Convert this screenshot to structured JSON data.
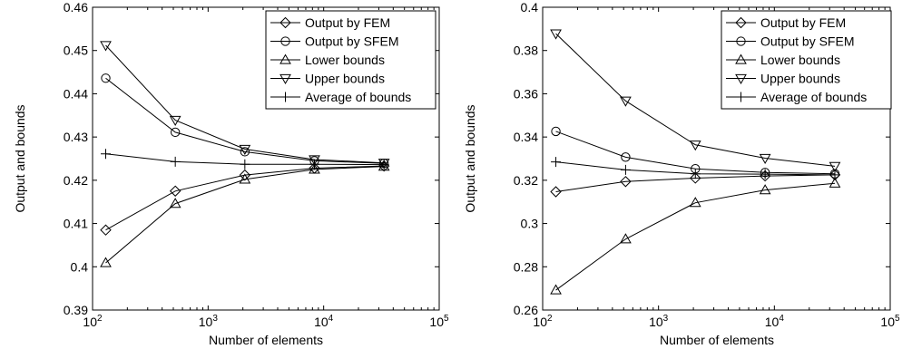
{
  "chart_data": [
    {
      "type": "line",
      "xscale": "log",
      "xlim": [
        100,
        100000
      ],
      "ylim": [
        0.39,
        0.46
      ],
      "x_ticks": [
        100,
        1000,
        10000,
        100000
      ],
      "x_tick_labels": [
        {
          "base": "10",
          "exp": "2"
        },
        {
          "base": "10",
          "exp": "3"
        },
        {
          "base": "10",
          "exp": "4"
        },
        {
          "base": "10",
          "exp": "5"
        }
      ],
      "y_ticks": [
        0.39,
        0.4,
        0.41,
        0.42,
        0.43,
        0.44,
        0.45,
        0.46
      ],
      "y_tick_labels": [
        "0.39",
        "0.4",
        "0.41",
        "0.42",
        "0.43",
        "0.44",
        "0.45",
        "0.46"
      ],
      "xlabel": "Number of elements",
      "ylabel": "Output and bounds",
      "grid": false,
      "legend_position": "top-right",
      "x": [
        130,
        520,
        2080,
        8320,
        33280
      ],
      "series": [
        {
          "name": "Output by FEM",
          "marker": "diamond",
          "values": [
            0.4085,
            0.4175,
            0.4212,
            0.4228,
            0.4233
          ]
        },
        {
          "name": "Output by SFEM",
          "marker": "circle",
          "values": [
            0.4436,
            0.4311,
            0.4266,
            0.4245,
            0.4239
          ]
        },
        {
          "name": "Lower bounds",
          "marker": "triangle-up",
          "values": [
            0.4009,
            0.4146,
            0.4202,
            0.4225,
            0.4232
          ]
        },
        {
          "name": "Upper bounds",
          "marker": "triangle-down",
          "values": [
            0.4512,
            0.4339,
            0.4272,
            0.4248,
            0.424
          ]
        },
        {
          "name": "Average of bounds",
          "marker": "plus",
          "values": [
            0.4261,
            0.4243,
            0.4237,
            0.4237,
            0.4236
          ]
        }
      ]
    },
    {
      "type": "line",
      "xscale": "log",
      "xlim": [
        100,
        100000
      ],
      "ylim": [
        0.26,
        0.4
      ],
      "x_ticks": [
        100,
        1000,
        10000,
        100000
      ],
      "x_tick_labels": [
        {
          "base": "10",
          "exp": "2"
        },
        {
          "base": "10",
          "exp": "3"
        },
        {
          "base": "10",
          "exp": "4"
        },
        {
          "base": "10",
          "exp": "5"
        }
      ],
      "y_ticks": [
        0.26,
        0.28,
        0.3,
        0.32,
        0.34,
        0.36,
        0.38,
        0.4
      ],
      "y_tick_labels": [
        "0.26",
        "0.28",
        "0.3",
        "0.32",
        "0.34",
        "0.36",
        "0.38",
        "0.4"
      ],
      "xlabel": "Number of elements",
      "ylabel": "Output and bounds",
      "grid": false,
      "legend_position": "top-right",
      "x": [
        130,
        520,
        2080,
        8320,
        33280
      ],
      "series": [
        {
          "name": "Output by FEM",
          "marker": "diamond",
          "values": [
            0.3147,
            0.3194,
            0.321,
            0.322,
            0.3225
          ]
        },
        {
          "name": "Output by SFEM",
          "marker": "circle",
          "values": [
            0.3426,
            0.3307,
            0.3253,
            0.3236,
            0.323
          ]
        },
        {
          "name": "Lower bounds",
          "marker": "triangle-up",
          "values": [
            0.2692,
            0.2928,
            0.3096,
            0.3155,
            0.3186
          ]
        },
        {
          "name": "Upper bounds",
          "marker": "triangle-down",
          "values": [
            0.3878,
            0.3567,
            0.3364,
            0.3302,
            0.3265
          ]
        },
        {
          "name": "Average of bounds",
          "marker": "plus",
          "values": [
            0.3285,
            0.3248,
            0.323,
            0.3228,
            0.3225
          ]
        }
      ]
    }
  ]
}
